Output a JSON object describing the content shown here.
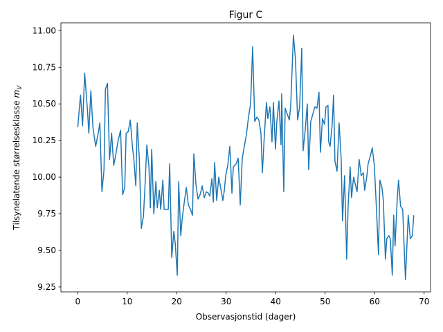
{
  "chart_data": {
    "type": "line",
    "title": "Figur C",
    "xlabel": "Observasjonstid (dager)",
    "ylabel": "Tilsynelatende størrelsesklasse",
    "ylabel_symbol": "m",
    "ylabel_subscript": "V",
    "color": "#1f77b4",
    "x": [
      0.0,
      0.56,
      0.98,
      1.4,
      1.96,
      2.24,
      2.65,
      3.07,
      3.63,
      4.19,
      4.47,
      4.89,
      5.31,
      5.59,
      6.01,
      6.43,
      6.85,
      7.27,
      7.68,
      8.1,
      8.66,
      9.08,
      9.5,
      9.78,
      10.2,
      10.62,
      11.04,
      11.32,
      11.74,
      12.02,
      12.44,
      12.85,
      13.27,
      13.55,
      13.97,
      14.39,
      14.67,
      14.95,
      15.37,
      15.79,
      16.07,
      16.49,
      16.77,
      17.19,
      17.47,
      17.88,
      18.3,
      18.58,
      19.0,
      19.42,
      19.7,
      20.12,
      20.4,
      20.82,
      21.1,
      21.38,
      21.94,
      22.36,
      22.78,
      23.19,
      23.47,
      23.89,
      24.31,
      24.73,
      25.15,
      25.57,
      25.99,
      26.41,
      26.69,
      27.11,
      27.39,
      27.67,
      28.08,
      28.5,
      28.92,
      29.34,
      29.62,
      29.9,
      30.32,
      30.74,
      31.16,
      31.44,
      32.0,
      32.42,
      32.84,
      33.25,
      33.67,
      34.09,
      34.51,
      34.93,
      35.35,
      35.77,
      36.19,
      36.61,
      37.03,
      37.31,
      37.72,
      38.14,
      38.42,
      38.84,
      39.26,
      39.54,
      39.96,
      40.24,
      40.66,
      41.08,
      41.22,
      41.64,
      41.92,
      42.34,
      42.76,
      43.03,
      43.59,
      44.01,
      44.43,
      44.85,
      45.27,
      45.55,
      45.97,
      46.39,
      46.67,
      47.09,
      47.51,
      47.92,
      48.34,
      48.76,
      49.04,
      49.46,
      49.88,
      50.16,
      50.58,
      50.72,
      51.0,
      51.42,
      51.7,
      51.98,
      52.4,
      52.82,
      53.24,
      53.51,
      53.93,
      54.35,
      54.63,
      55.05,
      55.33,
      55.75,
      56.03,
      56.45,
      56.87,
      57.29,
      57.71,
      57.99,
      58.41,
      58.68,
      59.1,
      59.52,
      59.94,
      60.36,
      60.78,
      61.06,
      61.48,
      61.76,
      62.18,
      62.46,
      62.88,
      63.16,
      63.57,
      63.85,
      64.13,
      64.55,
      64.83,
      65.25,
      65.67,
      66.23,
      66.79,
      67.21,
      67.63,
      67.91
    ],
    "values": [
      10.34,
      10.56,
      10.35,
      10.71,
      10.46,
      10.3,
      10.59,
      10.34,
      10.21,
      10.31,
      10.37,
      9.9,
      10.05,
      10.6,
      10.64,
      10.12,
      10.3,
      10.08,
      10.15,
      10.24,
      10.32,
      9.88,
      9.93,
      10.3,
      10.31,
      10.39,
      10.21,
      10.13,
      9.94,
      10.37,
      10.13,
      9.65,
      9.73,
      9.91,
      10.22,
      10.07,
      9.79,
      10.19,
      9.75,
      9.97,
      9.79,
      9.91,
      9.78,
      9.98,
      9.78,
      9.78,
      9.78,
      10.09,
      9.45,
      9.63,
      9.55,
      9.33,
      9.97,
      9.6,
      9.71,
      9.79,
      9.93,
      9.81,
      9.78,
      9.74,
      10.16,
      9.95,
      9.85,
      9.88,
      9.94,
      9.86,
      9.9,
      9.89,
      9.87,
      9.99,
      9.83,
      10.1,
      9.84,
      10.0,
      9.92,
      9.84,
      9.91,
      10.01,
      10.08,
      10.21,
      9.89,
      10.07,
      10.09,
      10.13,
      9.81,
      10.13,
      10.21,
      10.29,
      10.41,
      10.5,
      10.89,
      10.38,
      10.41,
      10.39,
      10.3,
      10.03,
      10.29,
      10.51,
      10.4,
      10.48,
      10.24,
      10.51,
      10.19,
      10.38,
      10.52,
      10.22,
      10.57,
      9.9,
      10.47,
      10.43,
      10.39,
      10.48,
      10.97,
      10.8,
      10.39,
      10.48,
      10.88,
      10.18,
      10.32,
      10.5,
      10.05,
      10.38,
      10.43,
      10.48,
      10.47,
      10.58,
      10.17,
      10.4,
      10.36,
      10.48,
      10.49,
      10.24,
      10.21,
      10.36,
      10.56,
      10.11,
      10.04,
      10.37,
      10.12,
      9.7,
      10.01,
      9.44,
      9.79,
      10.07,
      9.86,
      10.0,
      9.96,
      9.9,
      10.12,
      10.01,
      10.03,
      9.91,
      10.0,
      10.09,
      10.14,
      10.2,
      10.08,
      9.79,
      9.47,
      9.98,
      9.93,
      9.84,
      9.44,
      9.58,
      9.6,
      9.58,
      9.33,
      9.74,
      9.53,
      9.84,
      9.98,
      9.8,
      9.78,
      9.3,
      9.74,
      9.58,
      9.6,
      9.74
    ],
    "xlim": [
      -3.4,
      71.3
    ],
    "xticks": [
      0,
      10,
      20,
      30,
      40,
      50,
      60,
      70
    ],
    "ylim": [
      9.2165,
      11.0535
    ],
    "yticks": [
      9.25,
      {
        "value": 9.5,
        "label": "9.50"
      },
      9.75,
      {
        "value": 10,
        "label": "10.00"
      },
      10.25,
      {
        "value": 10.5,
        "label": "10.50"
      },
      10.75,
      {
        "value": 11,
        "label": "11.00"
      }
    ]
  }
}
